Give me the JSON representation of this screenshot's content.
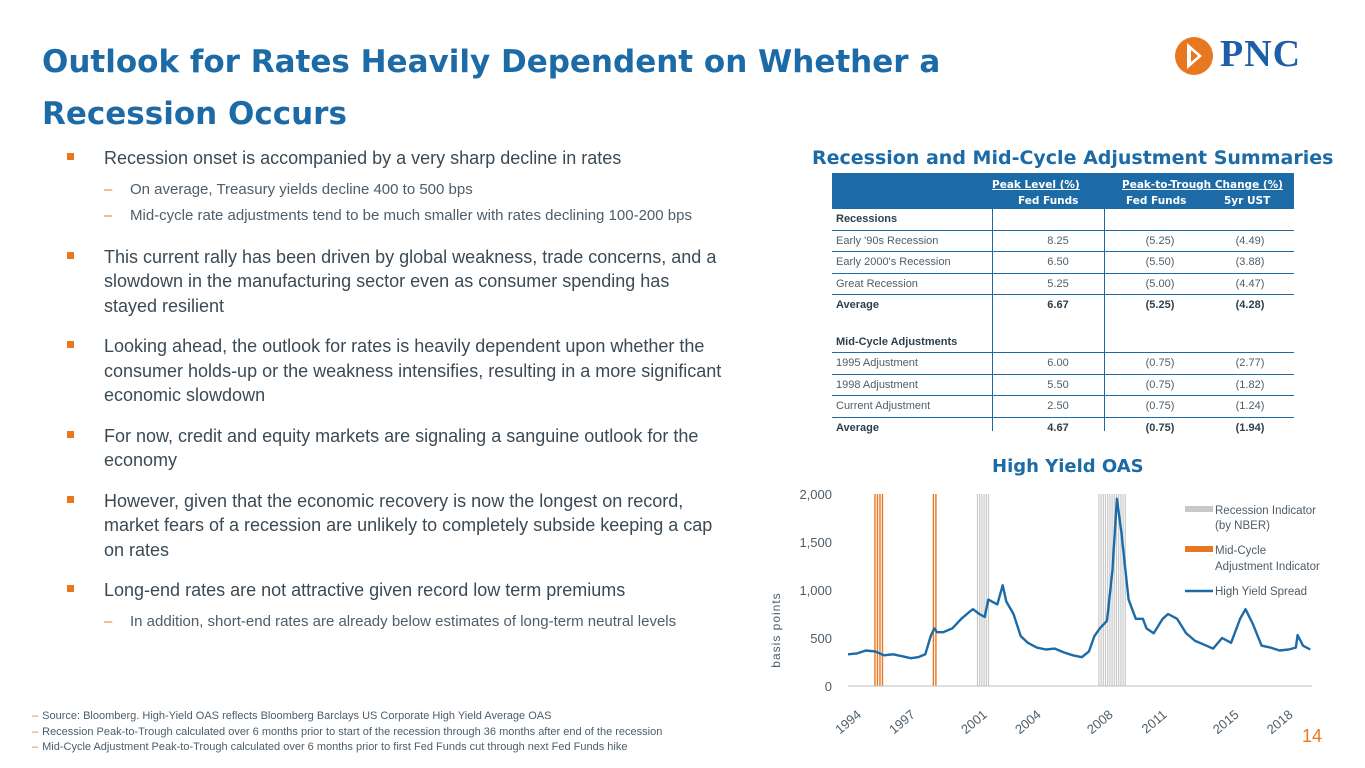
{
  "header": {
    "title_line1": "Outlook for Rates Heavily Dependent on Whether a",
    "title_line2": "Recession Occurs",
    "logo_text": "PNC"
  },
  "bullets": [
    {
      "text": "Recession onset is accompanied by a very sharp decline in rates",
      "subs": [
        "On average, Treasury yields decline 400 to 500 bps",
        "Mid-cycle rate adjustments tend to be much smaller with rates declining 100-200 bps"
      ]
    },
    {
      "text": "This current rally has been driven by global weakness, trade concerns, and a slowdown in the manufacturing sector even as consumer spending has stayed resilient",
      "subs": []
    },
    {
      "text": "Looking ahead, the outlook for rates is heavily dependent upon whether the consumer holds-up or the weakness intensifies, resulting in a more significant economic slowdown",
      "subs": []
    },
    {
      "text": "For now, credit and equity markets are signaling a sanguine outlook for the economy",
      "subs": []
    },
    {
      "text": "However, given that the economic recovery is now the longest on record, market fears of a recession are unlikely to completely subside keeping a cap on rates",
      "subs": []
    },
    {
      "text": "Long-end rates are not attractive given record low term premiums",
      "subs": [
        "In addition, short-end rates are already below estimates of long-term neutral levels"
      ]
    }
  ],
  "footnotes": [
    "Source: Bloomberg.  High-Yield OAS  reflects Bloomberg Barclays US Corporate High Yield Average OAS",
    "Recession Peak-to-Trough calculated over 6 months prior to start of the recession through 36 months after end of the recession",
    "Mid-Cycle Adjustment Peak-to-Trough calculated over 6 months prior to first Fed Funds cut through next Fed Funds hike"
  ],
  "page_number": "14",
  "table": {
    "title": "Recession and Mid-Cycle Adjustment Summaries",
    "header_group1": "Peak Level (%)",
    "header_group2": "Peak-to-Trough Change (%)",
    "col_fed_funds": "Fed Funds",
    "col_fed_funds2": "Fed Funds",
    "col_5yr": "5yr UST",
    "recessions_label": "Recessions",
    "recessions": [
      {
        "name": "Early '90s Recession",
        "peak": "8.25",
        "ff": "(5.25)",
        "ust": "(4.49)"
      },
      {
        "name": "Early 2000's Recession",
        "peak": "6.50",
        "ff": "(5.50)",
        "ust": "(3.88)"
      },
      {
        "name": "Great Recession",
        "peak": "5.25",
        "ff": "(5.00)",
        "ust": "(4.47)"
      }
    ],
    "recession_avg": {
      "name": "Average",
      "peak": "6.67",
      "ff": "(5.25)",
      "ust": "(4.28)"
    },
    "midcycle_label": "Mid-Cycle Adjustments",
    "midcycle": [
      {
        "name": "1995 Adjustment",
        "peak": "6.00",
        "ff": "(0.75)",
        "ust": "(2.77)"
      },
      {
        "name": "1998 Adjustment",
        "peak": "5.50",
        "ff": "(0.75)",
        "ust": "(1.82)"
      },
      {
        "name": "Current Adjustment",
        "peak": "2.50",
        "ff": "(0.75)",
        "ust": "(1.24)"
      }
    ],
    "midcycle_avg": {
      "name": "Average",
      "peak": "4.67",
      "ff": "(0.75)",
      "ust": "(1.94)"
    }
  },
  "chart_data": {
    "type": "line",
    "title": "High Yield OAS",
    "ylabel": "basis points",
    "ylim": [
      0,
      2000
    ],
    "yticks": [
      "0",
      "500",
      "1,000",
      "1,500",
      "2,000"
    ],
    "xticks": [
      "1994",
      "1997",
      "2001",
      "2004",
      "2008",
      "2011",
      "2015",
      "2018"
    ],
    "xticks_num": [
      1994,
      1997,
      2001,
      2004,
      2008,
      2011,
      2015,
      2018
    ],
    "xlim": [
      1994,
      2019.8
    ],
    "legend": [
      "Recession Indicator",
      "(by NBER)",
      "Mid-Cycle",
      "Adjustment Indicator",
      "High Yield Spread"
    ],
    "legend_placement": "right",
    "recession_periods": [
      [
        2001.2,
        2001.9
      ],
      [
        2007.95,
        2009.5
      ]
    ],
    "midcycle_periods": [
      [
        1995.5,
        1996.0
      ],
      [
        1998.75,
        1998.9
      ]
    ],
    "series": [
      {
        "name": "High Yield Spread",
        "x": [
          1994.0,
          1994.5,
          1995.0,
          1995.5,
          1996.0,
          1996.5,
          1997.0,
          1997.5,
          1997.9,
          1998.3,
          1998.6,
          1998.8,
          1998.95,
          1999.3,
          1999.8,
          2000.3,
          2000.8,
          2000.95,
          2001.3,
          2001.6,
          2001.8,
          2002.3,
          2002.6,
          2002.8,
          2003.2,
          2003.6,
          2004.0,
          2004.5,
          2005.0,
          2005.5,
          2006.0,
          2006.5,
          2007.0,
          2007.4,
          2007.7,
          2008.0,
          2008.4,
          2008.7,
          2008.95,
          2009.2,
          2009.6,
          2010.0,
          2010.4,
          2010.6,
          2011.0,
          2011.5,
          2011.8,
          2012.3,
          2012.8,
          2013.3,
          2013.8,
          2014.3,
          2014.8,
          2015.3,
          2015.8,
          2016.1,
          2016.5,
          2017.0,
          2017.5,
          2018.0,
          2018.5,
          2018.9,
          2019.0,
          2019.3,
          2019.5,
          2019.7
        ],
        "values": [
          330,
          340,
          370,
          360,
          320,
          330,
          310,
          290,
          300,
          330,
          520,
          600,
          560,
          560,
          600,
          700,
          780,
          800,
          750,
          720,
          900,
          850,
          1050,
          880,
          750,
          520,
          450,
          400,
          380,
          390,
          350,
          320,
          300,
          360,
          520,
          600,
          680,
          1200,
          1950,
          1600,
          900,
          700,
          700,
          600,
          550,
          700,
          750,
          700,
          550,
          470,
          430,
          390,
          500,
          450,
          700,
          800,
          650,
          420,
          400,
          370,
          380,
          400,
          530,
          420,
          400,
          380
        ]
      }
    ]
  }
}
